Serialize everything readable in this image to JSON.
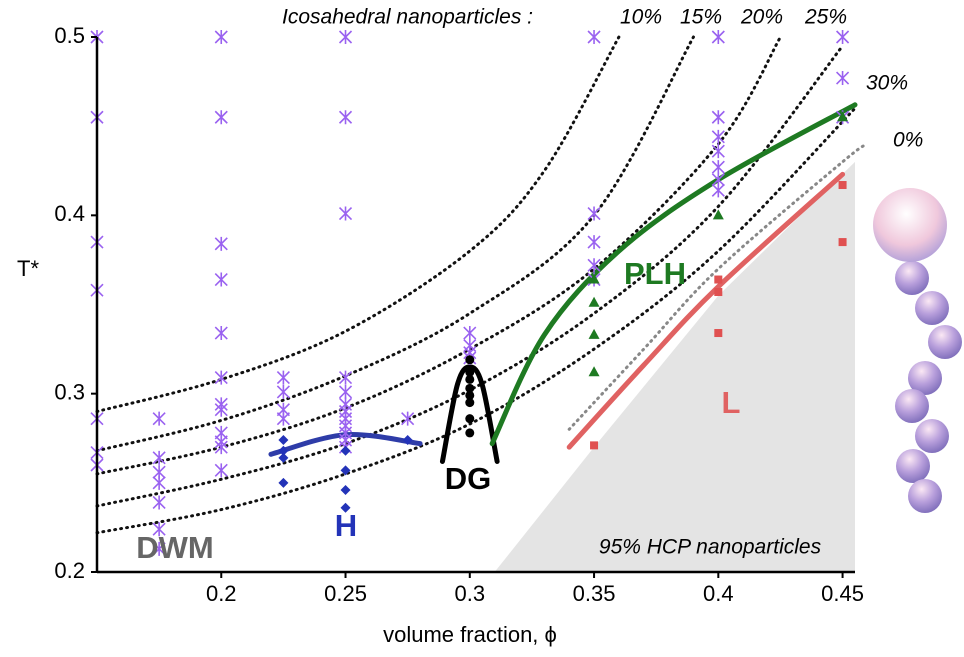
{
  "chart_data": {
    "type": "scatter",
    "y_label": "T*",
    "x_label": "volume fraction, ϕ",
    "xlim": [
      0.15,
      0.455
    ],
    "ylim": [
      0.2,
      0.5
    ],
    "xticks": [
      0.2,
      0.25,
      0.3,
      0.35,
      0.4,
      0.45
    ],
    "yticks": [
      0.2,
      0.3,
      0.4,
      0.5
    ],
    "header": "Icosahedral nanoparticles :",
    "region": {
      "label": "95% HCP nanoparticles",
      "color": "#e4e4e4",
      "x": [
        0.31,
        0.35,
        0.4,
        0.455,
        0.455
      ],
      "y": [
        0.2,
        0.27,
        0.355,
        0.43,
        0.2
      ]
    },
    "curves": [
      {
        "label": "10%",
        "color": "#111111",
        "style": "dotted",
        "x": [
          0.15,
          0.2,
          0.25,
          0.3,
          0.33,
          0.36
        ],
        "y": [
          0.29,
          0.308,
          0.335,
          0.38,
          0.425,
          0.5
        ]
      },
      {
        "label": "15%",
        "color": "#111111",
        "style": "dotted",
        "x": [
          0.15,
          0.2,
          0.25,
          0.3,
          0.35,
          0.39
        ],
        "y": [
          0.268,
          0.285,
          0.31,
          0.345,
          0.4,
          0.5
        ]
      },
      {
        "label": "20%",
        "color": "#111111",
        "style": "dotted",
        "x": [
          0.15,
          0.2,
          0.25,
          0.3,
          0.35,
          0.4,
          0.425
        ],
        "y": [
          0.255,
          0.27,
          0.292,
          0.325,
          0.37,
          0.44,
          0.5
        ]
      },
      {
        "label": "25%",
        "color": "#111111",
        "style": "dotted",
        "x": [
          0.15,
          0.2,
          0.25,
          0.3,
          0.35,
          0.4,
          0.45
        ],
        "y": [
          0.237,
          0.252,
          0.272,
          0.302,
          0.345,
          0.405,
          0.495
        ]
      },
      {
        "label": "30%",
        "color": "#111111",
        "style": "dotted",
        "x": [
          0.15,
          0.2,
          0.25,
          0.3,
          0.35,
          0.4,
          0.455
        ],
        "y": [
          0.222,
          0.235,
          0.255,
          0.283,
          0.325,
          0.38,
          0.46
        ]
      },
      {
        "label": "0%",
        "color": "#888888",
        "style": "dotted",
        "x": [
          0.34,
          0.37,
          0.4,
          0.45,
          0.46
        ],
        "y": [
          0.28,
          0.325,
          0.37,
          0.43,
          0.44
        ]
      },
      {
        "color": "#2e3ca8",
        "style": "solid",
        "x": [
          0.22,
          0.25,
          0.28
        ],
        "y": [
          0.266,
          0.277,
          0.272
        ]
      },
      {
        "color": "#000000",
        "style": "solid",
        "x": [
          0.289,
          0.295,
          0.3,
          0.305,
          0.311
        ],
        "y": [
          0.262,
          0.305,
          0.315,
          0.305,
          0.262
        ]
      },
      {
        "color": "#1e7a22",
        "style": "solid",
        "x": [
          0.309,
          0.33,
          0.36,
          0.4,
          0.455
        ],
        "y": [
          0.272,
          0.333,
          0.38,
          0.42,
          0.462
        ]
      },
      {
        "color": "#e06262",
        "style": "solid",
        "x": [
          0.34,
          0.37,
          0.4,
          0.45
        ],
        "y": [
          0.27,
          0.316,
          0.36,
          0.423
        ]
      }
    ],
    "series": [
      {
        "marker": "asterisk",
        "color": "#9a62f0",
        "x": [
          0.15,
          0.15,
          0.15,
          0.15,
          0.15,
          0.15,
          0.15,
          0.175,
          0.175,
          0.175,
          0.175,
          0.175,
          0.175,
          0.175,
          0.2,
          0.2,
          0.2,
          0.2,
          0.2,
          0.2,
          0.2,
          0.2,
          0.2,
          0.2,
          0.2,
          0.2,
          0.225,
          0.225,
          0.225,
          0.225,
          0.25,
          0.25,
          0.25,
          0.25,
          0.25,
          0.25,
          0.25,
          0.25,
          0.25,
          0.25,
          0.25,
          0.25,
          0.275,
          0.3,
          0.3,
          0.3,
          0.3,
          0.35,
          0.35,
          0.35,
          0.35,
          0.35,
          0.4,
          0.4,
          0.4,
          0.4,
          0.4,
          0.4,
          0.4,
          0.45,
          0.45,
          0.45
        ],
        "values": [
          0.5,
          0.455,
          0.385,
          0.358,
          0.286,
          0.267,
          0.26,
          0.286,
          0.264,
          0.256,
          0.25,
          0.239,
          0.224,
          0.213,
          0.5,
          0.455,
          0.384,
          0.364,
          0.334,
          0.309,
          0.294,
          0.291,
          0.278,
          0.273,
          0.27,
          0.257,
          0.309,
          0.301,
          0.291,
          0.286,
          0.5,
          0.455,
          0.401,
          0.309,
          0.301,
          0.294,
          0.29,
          0.286,
          0.282,
          0.278,
          0.274,
          0.27,
          0.286,
          0.334,
          0.327,
          0.323,
          0.32,
          0.5,
          0.401,
          0.385,
          0.372,
          0.364,
          0.5,
          0.455,
          0.444,
          0.436,
          0.427,
          0.42,
          0.414,
          0.5,
          0.477,
          0.455
        ]
      },
      {
        "marker": "diamond",
        "color": "#2333b8",
        "x": [
          0.225,
          0.225,
          0.225,
          0.225,
          0.25,
          0.25,
          0.25,
          0.25,
          0.275
        ],
        "values": [
          0.274,
          0.268,
          0.264,
          0.25,
          0.268,
          0.257,
          0.246,
          0.236,
          0.274
        ]
      },
      {
        "marker": "dot",
        "color": "#000000",
        "x": [
          0.3,
          0.3,
          0.3,
          0.3,
          0.3,
          0.3,
          0.3,
          0.3
        ],
        "values": [
          0.319,
          0.312,
          0.308,
          0.303,
          0.299,
          0.295,
          0.286,
          0.278
        ]
      },
      {
        "marker": "triangle",
        "color": "#1e7a22",
        "x": [
          0.35,
          0.35,
          0.35,
          0.35,
          0.4,
          0.45
        ],
        "values": [
          0.364,
          0.351,
          0.333,
          0.312,
          0.4,
          0.455
        ]
      },
      {
        "marker": "square",
        "color": "#e05050",
        "x": [
          0.35,
          0.4,
          0.4,
          0.4,
          0.45,
          0.45
        ],
        "values": [
          0.271,
          0.364,
          0.357,
          0.334,
          0.417,
          0.385
        ]
      }
    ],
    "annotations": [
      {
        "text": "DWM",
        "color": "#666666"
      },
      {
        "text": "H",
        "color": "#2333b8"
      },
      {
        "text": "DG",
        "color": "#000000"
      },
      {
        "text": "PLH",
        "color": "#1e7a22"
      },
      {
        "text": "L",
        "color": "#e06262"
      }
    ]
  }
}
